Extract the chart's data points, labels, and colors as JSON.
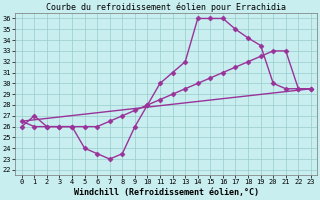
{
  "title": "Courbe du refroidissement éolien pour Errachidia",
  "xlabel": "Windchill (Refroidissement éolien,°C)",
  "bg_color": "#c8eef0",
  "line_color": "#993399",
  "grid_color": "#99cccc",
  "xlim": [
    -0.5,
    23.5
  ],
  "ylim": [
    21.5,
    36.5
  ],
  "xticks": [
    0,
    1,
    2,
    3,
    4,
    5,
    6,
    7,
    8,
    9,
    10,
    11,
    12,
    13,
    14,
    15,
    16,
    17,
    18,
    19,
    20,
    21,
    22,
    23
  ],
  "yticks": [
    22,
    23,
    24,
    25,
    26,
    27,
    28,
    29,
    30,
    31,
    32,
    33,
    34,
    35,
    36
  ],
  "series1_x": [
    0,
    1,
    2,
    3,
    4,
    5,
    6,
    7,
    8,
    9,
    10,
    11,
    12,
    13,
    14,
    15,
    16,
    17,
    18,
    19,
    20,
    21,
    22,
    23
  ],
  "series1_y": [
    26,
    27,
    26,
    26,
    26,
    24,
    23.5,
    23,
    23.5,
    26,
    28,
    30,
    31,
    32,
    36,
    36,
    36,
    35,
    34.2,
    33.5,
    30,
    29.5,
    29.5,
    29.5
  ],
  "series2_x": [
    0,
    1,
    2,
    3,
    4,
    5,
    6,
    7,
    8,
    9,
    10,
    11,
    12,
    13,
    14,
    15,
    16,
    17,
    18,
    19,
    20,
    21,
    22,
    23
  ],
  "series2_y": [
    26.5,
    26,
    26,
    26,
    26,
    26,
    26,
    26.5,
    27,
    27.5,
    28,
    28.5,
    29,
    29.5,
    30,
    30.5,
    31,
    31.5,
    32,
    32.5,
    33,
    33,
    29.5,
    29.5
  ],
  "series3_x": [
    0,
    23
  ],
  "series3_y": [
    26.5,
    29.5
  ],
  "marker": "D",
  "marker_size": 2.5,
  "line_width": 1.0,
  "title_fontsize": 6,
  "tick_fontsize": 5,
  "xlabel_fontsize": 6
}
